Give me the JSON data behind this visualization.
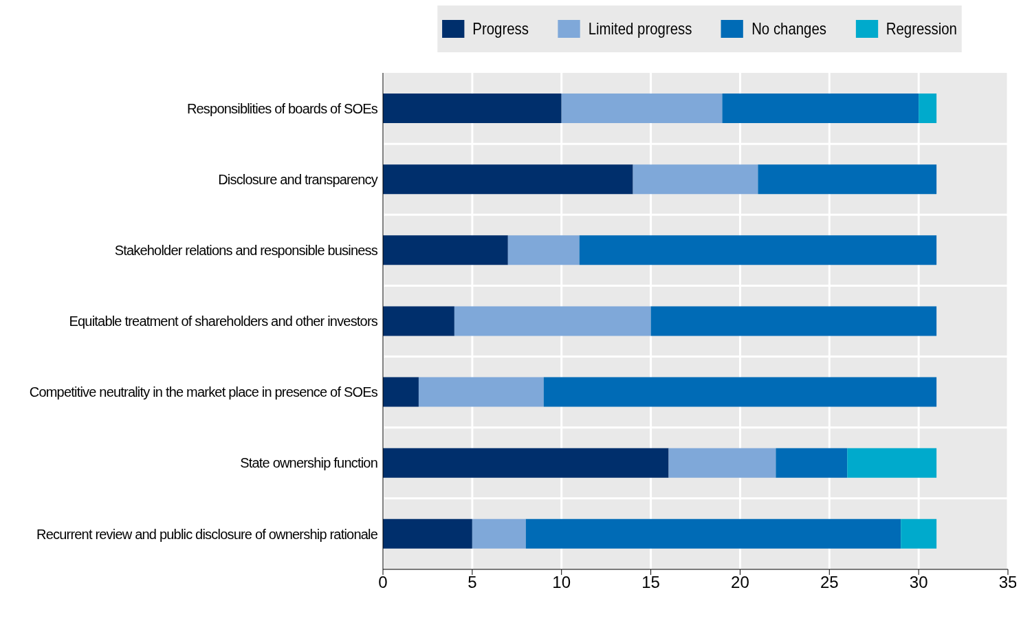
{
  "chart_data": {
    "type": "bar",
    "orientation": "horizontal",
    "stacked": true,
    "categories": [
      "Responsiblities of boards of SOEs",
      "Disclosure and transparency",
      "Stakeholder relations and responsible business",
      "Equitable treatment of shareholders and other investors",
      "Competitive neutrality in the market place in presence of SOEs",
      "State ownership function",
      "Recurrent review and public disclosure of ownership rationale"
    ],
    "series": [
      {
        "name": "Progress",
        "color": "#002f6c",
        "values": [
          10,
          14,
          7,
          4,
          2,
          16,
          5
        ]
      },
      {
        "name": "Limited progress",
        "color": "#7fa8d9",
        "values": [
          9,
          7,
          4,
          11,
          7,
          6,
          3
        ]
      },
      {
        "name": "No changes",
        "color": "#006bb6",
        "values": [
          11,
          10,
          20,
          16,
          22,
          4,
          21
        ]
      },
      {
        "name": "Regression",
        "color": "#00aacc",
        "values": [
          1,
          0,
          0,
          0,
          0,
          5,
          2
        ]
      }
    ],
    "xlim": [
      0,
      35
    ],
    "xticks": [
      0,
      5,
      10,
      15,
      20,
      25,
      30,
      35
    ],
    "grid": true,
    "legend": "top"
  }
}
